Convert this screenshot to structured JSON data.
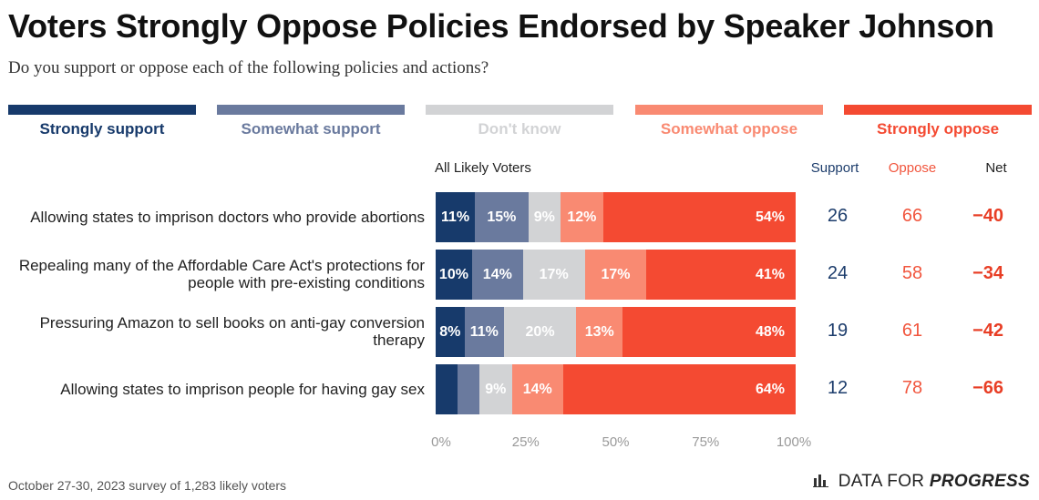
{
  "header": {
    "title": "Voters Strongly Oppose Policies Endorsed by Speaker Johnson",
    "subtitle": "Do you support or oppose each of the following policies and actions?"
  },
  "colors": {
    "strongly_support": "#173a6b",
    "somewhat_support": "#6a7a9e",
    "dont_know": "#d2d3d5",
    "somewhat_oppose": "#f98a72",
    "strongly_oppose": "#f44a32",
    "support_text": "#1d3d6c",
    "oppose_text": "#f1563e",
    "net_text": "#e83e25"
  },
  "legend": [
    {
      "key": "strongly_support",
      "label": "Strongly support"
    },
    {
      "key": "somewhat_support",
      "label": "Somewhat support"
    },
    {
      "key": "dont_know",
      "label": "Don't know"
    },
    {
      "key": "somewhat_oppose",
      "label": "Somewhat oppose"
    },
    {
      "key": "strongly_oppose",
      "label": "Strongly oppose"
    }
  ],
  "columns": {
    "group": "All Likely Voters",
    "support": "Support",
    "oppose": "Oppose",
    "net": "Net"
  },
  "chart_data": {
    "type": "bar",
    "orientation": "horizontal-stacked",
    "xlim": [
      0,
      100
    ],
    "ticks": [
      "0%",
      "25%",
      "50%",
      "75%",
      "100%"
    ],
    "series_names": [
      "Strongly support",
      "Somewhat support",
      "Don't know",
      "Somewhat oppose",
      "Strongly oppose"
    ],
    "rows": [
      {
        "category": "Allowing states to imprison doctors who provide abortions",
        "values": [
          11,
          15,
          9,
          12,
          54
        ],
        "labels": [
          "11%",
          "15%",
          "9%",
          "12%",
          "54%"
        ],
        "support": "26",
        "oppose": "66",
        "net": "−40"
      },
      {
        "category": "Repealing many of the Affordable Care Act's protections for people with pre-existing conditions",
        "values": [
          10,
          14,
          17,
          17,
          41
        ],
        "labels": [
          "10%",
          "14%",
          "17%",
          "17%",
          "41%"
        ],
        "support": "24",
        "oppose": "58",
        "net": "−34"
      },
      {
        "category": "Pressuring Amazon to sell books on anti-gay conversion therapy",
        "values": [
          8,
          11,
          20,
          13,
          48
        ],
        "labels": [
          "8%",
          "11%",
          "20%",
          "13%",
          "48%"
        ],
        "support": "19",
        "oppose": "61",
        "net": "−42"
      },
      {
        "category": "Allowing states to imprison people for having gay sex",
        "values": [
          6,
          6,
          9,
          14,
          64
        ],
        "labels": [
          "",
          "",
          "9%",
          "14%",
          "64%"
        ],
        "support": "12",
        "oppose": "78",
        "net": "−66"
      }
    ]
  },
  "footer": {
    "note": "October 27-30, 2023 survey of 1,283 likely voters",
    "brand_prefix": "DATA FOR",
    "brand_strong": "PROGRESS",
    "brand_icon": "bar-chart-icon"
  }
}
